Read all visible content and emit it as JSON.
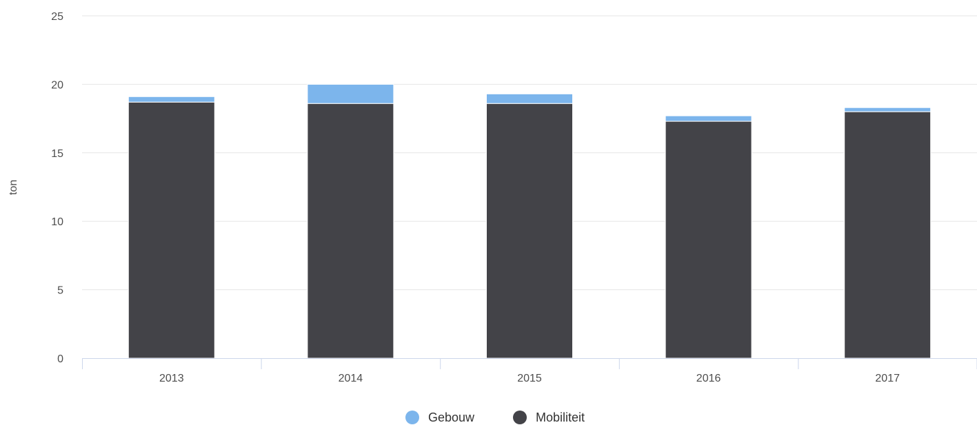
{
  "chart_data": {
    "type": "bar",
    "stacked": true,
    "categories": [
      "2013",
      "2014",
      "2015",
      "2016",
      "2017"
    ],
    "series": [
      {
        "name": "Mobiliteit",
        "color": "#434348",
        "values": [
          18.7,
          18.6,
          18.6,
          17.3,
          18.0
        ]
      },
      {
        "name": "Gebouw",
        "color": "#7cb5ec",
        "values": [
          0.4,
          1.4,
          0.7,
          0.4,
          0.3
        ]
      }
    ],
    "ylabel": "ton",
    "xlabel": "",
    "ylim": [
      0,
      25
    ],
    "yticks": [
      "0",
      "5",
      "10",
      "15",
      "20",
      "25"
    ],
    "grid": true,
    "legend_position": "bottom-center",
    "legend_order": [
      "Gebouw",
      "Mobiliteit"
    ]
  }
}
